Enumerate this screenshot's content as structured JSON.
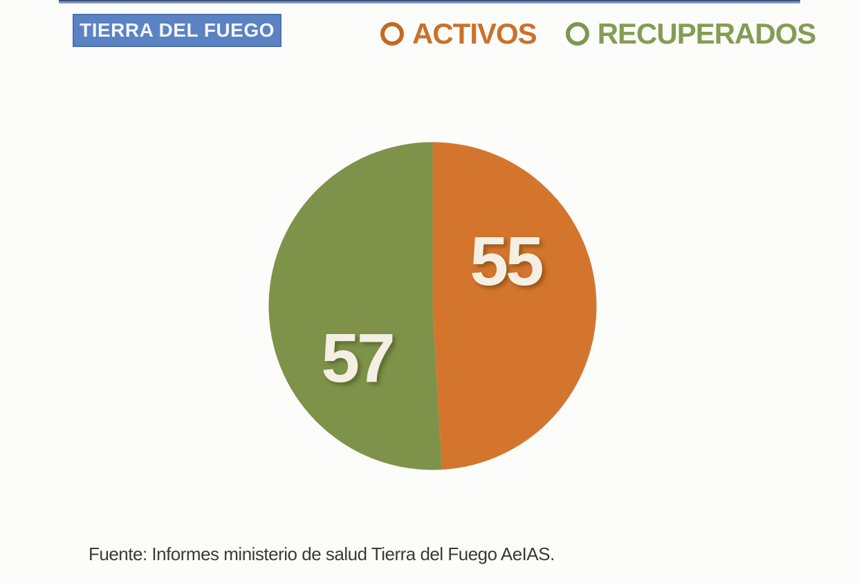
{
  "header": {
    "region_label": "TIERRA DEL FUEGO",
    "legend": [
      {
        "label": "ACTIVOS",
        "color": "#ca712b"
      },
      {
        "label": "RECUPERADOS",
        "color": "#859c54"
      }
    ]
  },
  "chart_data": {
    "type": "pie",
    "title": "TIERRA DEL FUEGO",
    "categories": [
      "ACTIVOS",
      "RECUPERADOS"
    ],
    "values": [
      55,
      57
    ],
    "colors": [
      "#d4752e",
      "#7e9249"
    ],
    "start_angle_deg_clockwise_from_top": 0,
    "legend_position": "top",
    "data_labels": "values shown on slices"
  },
  "footer": {
    "source_text": "Fuente: Informes ministerio de salud Tierra del Fuego AeIAS."
  },
  "colors": {
    "activos_slice": "#d4752e",
    "recuperados_slice": "#7e9249",
    "region_label_bg": "#5b83c3",
    "region_label_border": "#4a71ad",
    "top_rule_blue": "#7d99c8",
    "value_label_text": "#f4efe2",
    "source_text": "#3a3a3a"
  }
}
